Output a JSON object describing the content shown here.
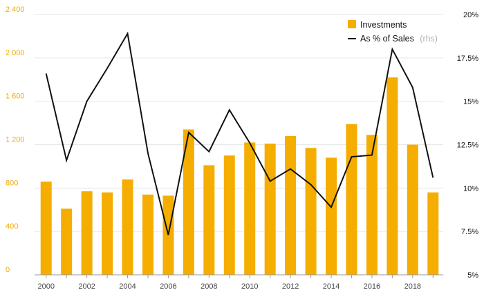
{
  "chart_data": {
    "type": "bar",
    "x": [
      2000,
      2001,
      2002,
      2003,
      2004,
      2005,
      2006,
      2007,
      2008,
      2009,
      2010,
      2011,
      2012,
      2013,
      2014,
      2015,
      2016,
      2017,
      2018,
      2019
    ],
    "x_tick_labels": [
      "2000",
      "2002",
      "2004",
      "2006",
      "2008",
      "2010",
      "2012",
      "2014",
      "2016",
      "2018"
    ],
    "series": [
      {
        "name": "Investments",
        "type": "bar",
        "axis": "left",
        "color": "#f5ad00",
        "values": [
          860,
          610,
          770,
          760,
          880,
          740,
          730,
          1340,
          1010,
          1100,
          1220,
          1210,
          1280,
          1170,
          1080,
          1390,
          1290,
          1820,
          1200,
          760
        ]
      },
      {
        "name": "As % of Sales",
        "name_suffix": "(rhs)",
        "type": "line",
        "axis": "right",
        "color": "#111111",
        "values": [
          16.6,
          11.6,
          15.0,
          16.9,
          18.9,
          12.0,
          7.3,
          13.2,
          12.1,
          14.5,
          12.6,
          10.4,
          11.1,
          10.2,
          8.9,
          11.8,
          11.9,
          18.0,
          15.8,
          10.6
        ]
      }
    ],
    "y_left": {
      "range": [
        0,
        2400
      ],
      "ticks": [
        "0",
        "400",
        "800",
        "1 200",
        "1 600",
        "2 000",
        "2 400"
      ],
      "tick_color": "#f2a900"
    },
    "y_right": {
      "range": [
        5,
        20
      ],
      "ticks": [
        "5%",
        "7.5%",
        "10%",
        "12.5%",
        "15%",
        "17.5%",
        "20%"
      ],
      "tick_color": "#111111"
    },
    "grid": true,
    "legend_position": "top-right",
    "title": "",
    "xlabel": "",
    "ylabel": ""
  }
}
